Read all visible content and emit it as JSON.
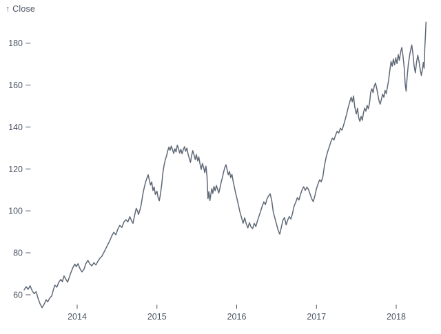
{
  "chart_data": {
    "type": "line",
    "title": "",
    "ylabel": "↑ Close",
    "xlabel": "",
    "grid": false,
    "legend": false,
    "x_ticks": [
      2014,
      2015,
      2016,
      2017,
      2018
    ],
    "y_ticks": [
      60,
      80,
      100,
      120,
      140,
      160,
      180
    ],
    "x_domain": [
      2013.335,
      2018.374
    ],
    "y_domain": [
      52,
      192
    ],
    "colors": {
      "line": "#5e6876",
      "axis": "#4b5565",
      "background": "#ffffff"
    },
    "series": [
      {
        "name": "Close",
        "points": [
          [
            2013.335,
            62.3
          ],
          [
            2013.36,
            63.8
          ],
          [
            2013.385,
            62.6
          ],
          [
            2013.41,
            64.3
          ],
          [
            2013.435,
            62.0
          ],
          [
            2013.46,
            60.5
          ],
          [
            2013.485,
            61.4
          ],
          [
            2013.51,
            58.2
          ],
          [
            2013.535,
            55.6
          ],
          [
            2013.56,
            53.9
          ],
          [
            2013.585,
            55.4
          ],
          [
            2013.61,
            57.6
          ],
          [
            2013.63,
            56.6
          ],
          [
            2013.655,
            58.4
          ],
          [
            2013.68,
            59.4
          ],
          [
            2013.7,
            62.2
          ],
          [
            2013.72,
            64.6
          ],
          [
            2013.745,
            63.6
          ],
          [
            2013.77,
            66.0
          ],
          [
            2013.795,
            67.3
          ],
          [
            2013.815,
            66.2
          ],
          [
            2013.835,
            69.0
          ],
          [
            2013.86,
            67.3
          ],
          [
            2013.88,
            66.0
          ],
          [
            2013.9,
            68.1
          ],
          [
            2013.92,
            70.4
          ],
          [
            2013.945,
            72.8
          ],
          [
            2013.97,
            74.6
          ],
          [
            2013.99,
            73.4
          ],
          [
            2014.01,
            74.8
          ],
          [
            2014.035,
            72.4
          ],
          [
            2014.06,
            70.9
          ],
          [
            2014.085,
            72.1
          ],
          [
            2014.11,
            74.9
          ],
          [
            2014.135,
            76.4
          ],
          [
            2014.16,
            74.6
          ],
          [
            2014.185,
            73.8
          ],
          [
            2014.21,
            75.3
          ],
          [
            2014.235,
            74.2
          ],
          [
            2014.26,
            76.0
          ],
          [
            2014.285,
            77.4
          ],
          [
            2014.31,
            78.4
          ],
          [
            2014.335,
            80.2
          ],
          [
            2014.36,
            82.1
          ],
          [
            2014.385,
            84.0
          ],
          [
            2014.41,
            85.9
          ],
          [
            2014.435,
            88.2
          ],
          [
            2014.46,
            89.8
          ],
          [
            2014.485,
            88.6
          ],
          [
            2014.51,
            91.3
          ],
          [
            2014.535,
            93.1
          ],
          [
            2014.56,
            92.1
          ],
          [
            2014.585,
            94.6
          ],
          [
            2014.61,
            95.8
          ],
          [
            2014.635,
            94.7
          ],
          [
            2014.66,
            97.2
          ],
          [
            2014.685,
            95.0
          ],
          [
            2014.7,
            94.1
          ],
          [
            2014.72,
            97.8
          ],
          [
            2014.74,
            101.2
          ],
          [
            2014.755,
            100.1
          ],
          [
            2014.77,
            98.3
          ],
          [
            2014.785,
            100.3
          ],
          [
            2014.8,
            102.4
          ],
          [
            2014.815,
            105.9
          ],
          [
            2014.83,
            109.3
          ],
          [
            2014.845,
            111.8
          ],
          [
            2014.86,
            113.9
          ],
          [
            2014.875,
            115.7
          ],
          [
            2014.89,
            117.2
          ],
          [
            2014.905,
            114.6
          ],
          [
            2014.92,
            112.3
          ],
          [
            2014.935,
            113.8
          ],
          [
            2014.95,
            109.7
          ],
          [
            2014.965,
            111.4
          ],
          [
            2014.98,
            107.8
          ],
          [
            2015.0,
            109.4
          ],
          [
            2015.015,
            106.2
          ],
          [
            2015.03,
            104.8
          ],
          [
            2015.045,
            108.3
          ],
          [
            2015.06,
            112.7
          ],
          [
            2015.075,
            118.2
          ],
          [
            2015.09,
            121.9
          ],
          [
            2015.105,
            124.4
          ],
          [
            2015.12,
            126.1
          ],
          [
            2015.135,
            128.6
          ],
          [
            2015.15,
            130.4
          ],
          [
            2015.165,
            128.9
          ],
          [
            2015.18,
            130.9
          ],
          [
            2015.195,
            129.2
          ],
          [
            2015.21,
            127.4
          ],
          [
            2015.225,
            129.6
          ],
          [
            2015.24,
            128.1
          ],
          [
            2015.255,
            131.3
          ],
          [
            2015.27,
            129.8
          ],
          [
            2015.285,
            127.6
          ],
          [
            2015.3,
            129.4
          ],
          [
            2015.315,
            127.2
          ],
          [
            2015.33,
            129.1
          ],
          [
            2015.345,
            130.6
          ],
          [
            2015.36,
            128.4
          ],
          [
            2015.375,
            129.9
          ],
          [
            2015.39,
            127.1
          ],
          [
            2015.405,
            125.2
          ],
          [
            2015.42,
            123.1
          ],
          [
            2015.435,
            126.4
          ],
          [
            2015.45,
            128.7
          ],
          [
            2015.465,
            126.6
          ],
          [
            2015.48,
            124.5
          ],
          [
            2015.495,
            126.9
          ],
          [
            2015.51,
            123.8
          ],
          [
            2015.525,
            125.7
          ],
          [
            2015.54,
            122.3
          ],
          [
            2015.555,
            119.8
          ],
          [
            2015.57,
            122.6
          ],
          [
            2015.585,
            120.7
          ],
          [
            2015.6,
            118.2
          ],
          [
            2015.615,
            121.3
          ],
          [
            2015.628,
            116.5
          ],
          [
            2015.64,
            105.8
          ],
          [
            2015.652,
            109.2
          ],
          [
            2015.664,
            104.9
          ],
          [
            2015.676,
            107.9
          ],
          [
            2015.688,
            110.6
          ],
          [
            2015.7,
            108.3
          ],
          [
            2015.715,
            111.7
          ],
          [
            2015.73,
            109.6
          ],
          [
            2015.745,
            112.1
          ],
          [
            2015.76,
            110.4
          ],
          [
            2015.775,
            108.5
          ],
          [
            2015.79,
            110.9
          ],
          [
            2015.805,
            113.6
          ],
          [
            2015.82,
            115.8
          ],
          [
            2015.835,
            118.4
          ],
          [
            2015.85,
            120.5
          ],
          [
            2015.865,
            122.0
          ],
          [
            2015.88,
            119.7
          ],
          [
            2015.895,
            117.2
          ],
          [
            2015.91,
            118.8
          ],
          [
            2015.925,
            115.9
          ],
          [
            2015.94,
            117.4
          ],
          [
            2015.955,
            114.2
          ],
          [
            2015.97,
            111.6
          ],
          [
            2015.985,
            108.7
          ],
          [
            2016.0,
            106.4
          ],
          [
            2016.02,
            103.1
          ],
          [
            2016.04,
            99.6
          ],
          [
            2016.06,
            96.9
          ],
          [
            2016.08,
            94.1
          ],
          [
            2016.1,
            96.7
          ],
          [
            2016.12,
            93.8
          ],
          [
            2016.14,
            91.9
          ],
          [
            2016.16,
            94.4
          ],
          [
            2016.18,
            92.3
          ],
          [
            2016.2,
            91.6
          ],
          [
            2016.22,
            94.0
          ],
          [
            2016.24,
            92.5
          ],
          [
            2016.26,
            95.2
          ],
          [
            2016.28,
            97.5
          ],
          [
            2016.3,
            99.8
          ],
          [
            2016.32,
            102.2
          ],
          [
            2016.34,
            104.3
          ],
          [
            2016.36,
            103.0
          ],
          [
            2016.38,
            105.7
          ],
          [
            2016.4,
            107.2
          ],
          [
            2016.42,
            108.1
          ],
          [
            2016.44,
            104.8
          ],
          [
            2016.46,
            99.2
          ],
          [
            2016.48,
            96.4
          ],
          [
            2016.5,
            93.5
          ],
          [
            2016.52,
            90.7
          ],
          [
            2016.54,
            88.9
          ],
          [
            2016.56,
            92.2
          ],
          [
            2016.58,
            95.6
          ],
          [
            2016.6,
            96.8
          ],
          [
            2016.62,
            93.3
          ],
          [
            2016.64,
            95.7
          ],
          [
            2016.66,
            97.3
          ],
          [
            2016.68,
            96.1
          ],
          [
            2016.7,
            98.8
          ],
          [
            2016.72,
            102.3
          ],
          [
            2016.74,
            104.1
          ],
          [
            2016.76,
            106.3
          ],
          [
            2016.78,
            105.2
          ],
          [
            2016.8,
            107.8
          ],
          [
            2016.82,
            110.0
          ],
          [
            2016.84,
            111.5
          ],
          [
            2016.86,
            109.8
          ],
          [
            2016.88,
            111.3
          ],
          [
            2016.9,
            110.2
          ],
          [
            2016.92,
            108.0
          ],
          [
            2016.94,
            105.8
          ],
          [
            2016.96,
            104.4
          ],
          [
            2016.98,
            107.1
          ],
          [
            2017.0,
            110.6
          ],
          [
            2017.02,
            112.9
          ],
          [
            2017.04,
            114.8
          ],
          [
            2017.06,
            113.9
          ],
          [
            2017.08,
            116.2
          ],
          [
            2017.1,
            121.4
          ],
          [
            2017.12,
            125.3
          ],
          [
            2017.14,
            128.2
          ],
          [
            2017.16,
            130.5
          ],
          [
            2017.18,
            132.8
          ],
          [
            2017.2,
            134.7
          ],
          [
            2017.22,
            133.8
          ],
          [
            2017.24,
            136.1
          ],
          [
            2017.26,
            138.0
          ],
          [
            2017.28,
            137.1
          ],
          [
            2017.3,
            139.4
          ],
          [
            2017.32,
            138.5
          ],
          [
            2017.34,
            140.8
          ],
          [
            2017.36,
            143.5
          ],
          [
            2017.38,
            146.3
          ],
          [
            2017.4,
            149.7
          ],
          [
            2017.42,
            152.3
          ],
          [
            2017.435,
            154.2
          ],
          [
            2017.45,
            152.0
          ],
          [
            2017.465,
            154.8
          ],
          [
            2017.48,
            149.6
          ],
          [
            2017.5,
            146.2
          ],
          [
            2017.515,
            148.9
          ],
          [
            2017.53,
            144.3
          ],
          [
            2017.545,
            142.7
          ],
          [
            2017.56,
            145.1
          ],
          [
            2017.575,
            143.2
          ],
          [
            2017.59,
            146.8
          ],
          [
            2017.605,
            149.0
          ],
          [
            2017.62,
            147.6
          ],
          [
            2017.635,
            150.3
          ],
          [
            2017.65,
            148.7
          ],
          [
            2017.665,
            151.1
          ],
          [
            2017.68,
            156.6
          ],
          [
            2017.695,
            158.2
          ],
          [
            2017.71,
            156.4
          ],
          [
            2017.725,
            159.5
          ],
          [
            2017.74,
            161.0
          ],
          [
            2017.755,
            158.7
          ],
          [
            2017.77,
            155.3
          ],
          [
            2017.785,
            152.4
          ],
          [
            2017.8,
            150.9
          ],
          [
            2017.815,
            153.3
          ],
          [
            2017.83,
            155.7
          ],
          [
            2017.845,
            154.2
          ],
          [
            2017.86,
            157.4
          ],
          [
            2017.875,
            155.9
          ],
          [
            2017.89,
            159.1
          ],
          [
            2017.905,
            162.3
          ],
          [
            2017.92,
            166.9
          ],
          [
            2017.935,
            171.2
          ],
          [
            2017.95,
            169.0
          ],
          [
            2017.965,
            172.4
          ],
          [
            2017.98,
            169.6
          ],
          [
            2017.995,
            173.0
          ],
          [
            2018.01,
            170.2
          ],
          [
            2018.025,
            174.5
          ],
          [
            2018.04,
            171.8
          ],
          [
            2018.055,
            175.7
          ],
          [
            2018.07,
            177.9
          ],
          [
            2018.085,
            174.0
          ],
          [
            2018.1,
            168.3
          ],
          [
            2018.112,
            160.5
          ],
          [
            2018.124,
            157.1
          ],
          [
            2018.138,
            164.4
          ],
          [
            2018.152,
            169.9
          ],
          [
            2018.166,
            173.6
          ],
          [
            2018.18,
            176.5
          ],
          [
            2018.195,
            179.1
          ],
          [
            2018.21,
            174.7
          ],
          [
            2018.225,
            169.0
          ],
          [
            2018.24,
            165.8
          ],
          [
            2018.255,
            170.9
          ],
          [
            2018.27,
            174.2
          ],
          [
            2018.285,
            171.5
          ],
          [
            2018.3,
            167.7
          ],
          [
            2018.315,
            164.6
          ],
          [
            2018.328,
            167.4
          ],
          [
            2018.34,
            170.8
          ],
          [
            2018.35,
            168.0
          ],
          [
            2018.358,
            176.9
          ],
          [
            2018.366,
            183.6
          ],
          [
            2018.374,
            190.0
          ]
        ]
      }
    ]
  }
}
